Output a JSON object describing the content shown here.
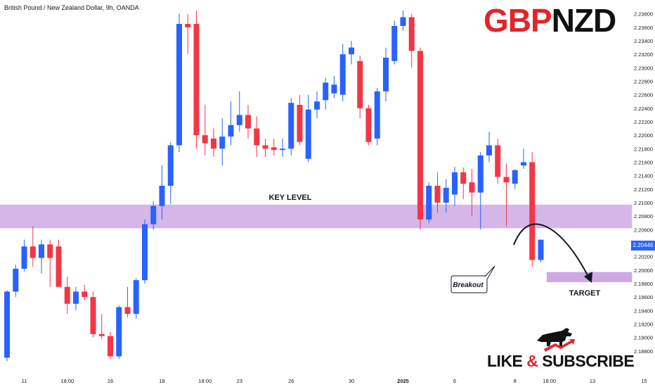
{
  "header": {
    "symbol_line": "British Pound / New Zealand Dollar, 9h, OANDA"
  },
  "logo": {
    "text_a": "GBP",
    "text_b": "NZD",
    "color_a": "#e0262a",
    "color_b": "#111111"
  },
  "cta": {
    "text_a": "LIKE ",
    "amp": "&",
    "text_b": " SUBSCRIBE"
  },
  "colors": {
    "bull": "#2962ff",
    "bear": "#f23645",
    "zone": "#c89ee0",
    "price_tag": "#2962ff"
  },
  "current_price": "2.20446",
  "chart_data": {
    "type": "candlestick",
    "title": "",
    "xlabel": "",
    "ylabel": "",
    "ylim": [
      2.1862,
      2.2388
    ],
    "y_ticks": [
      "2.23800",
      "2.23600",
      "2.23400",
      "2.23200",
      "2.23000",
      "2.22800",
      "2.22600",
      "2.22400",
      "2.22200",
      "2.22000",
      "2.21800",
      "2.21600",
      "2.21400",
      "2.21200",
      "2.21000",
      "2.20800",
      "2.20600",
      "2.20200",
      "2.20000",
      "2.19800",
      "2.19600",
      "2.19400",
      "2.19200",
      "2.19000",
      "2.18800"
    ],
    "x_ticks": [
      {
        "label": "11",
        "i": 2
      },
      {
        "label": "18:00",
        "i": 7
      },
      {
        "label": "16",
        "i": 12
      },
      {
        "label": "18",
        "i": 18
      },
      {
        "label": "18:00",
        "i": 23
      },
      {
        "label": "23",
        "i": 27
      },
      {
        "label": "26",
        "i": 33
      },
      {
        "label": "30",
        "i": 40
      },
      {
        "label": "2025",
        "i": 46
      },
      {
        "label": "6",
        "i": 52
      },
      {
        "label": "8",
        "i": 59
      },
      {
        "label": "18:00",
        "i": 63
      },
      {
        "label": "13",
        "i": 68
      },
      {
        "label": "15",
        "i": 74
      }
    ],
    "candles": [
      {
        "o": 2.187,
        "h": 2.197,
        "l": 2.1865,
        "c": 2.1968
      },
      {
        "o": 2.1968,
        "h": 2.2008,
        "l": 2.196,
        "c": 2.2002
      },
      {
        "o": 2.2002,
        "h": 2.2045,
        "l": 2.1998,
        "c": 2.2035
      },
      {
        "o": 2.2035,
        "h": 2.2065,
        "l": 2.2005,
        "c": 2.2018
      },
      {
        "o": 2.2018,
        "h": 2.2045,
        "l": 2.1995,
        "c": 2.2038
      },
      {
        "o": 2.2038,
        "h": 2.2045,
        "l": 2.1975,
        "c": 2.2018
      },
      {
        "o": 2.2035,
        "h": 2.2045,
        "l": 2.1978,
        "c": 2.1975
      },
      {
        "o": 2.1975,
        "h": 2.199,
        "l": 2.1935,
        "c": 2.195
      },
      {
        "o": 2.195,
        "h": 2.1975,
        "l": 2.194,
        "c": 2.1968
      },
      {
        "o": 2.1968,
        "h": 2.1978,
        "l": 2.1955,
        "c": 2.196
      },
      {
        "o": 2.196,
        "h": 2.1968,
        "l": 2.19,
        "c": 2.1905
      },
      {
        "o": 2.1905,
        "h": 2.1935,
        "l": 2.1898,
        "c": 2.1902
      },
      {
        "o": 2.1902,
        "h": 2.1908,
        "l": 2.1868,
        "c": 2.1872
      },
      {
        "o": 2.1872,
        "h": 2.1948,
        "l": 2.1868,
        "c": 2.1945
      },
      {
        "o": 2.1945,
        "h": 2.1975,
        "l": 2.193,
        "c": 2.1935
      },
      {
        "o": 2.1935,
        "h": 2.1988,
        "l": 2.1928,
        "c": 2.1985
      },
      {
        "o": 2.1985,
        "h": 2.2075,
        "l": 2.198,
        "c": 2.2068
      },
      {
        "o": 2.2068,
        "h": 2.2102,
        "l": 2.206,
        "c": 2.2095
      },
      {
        "o": 2.2095,
        "h": 2.2155,
        "l": 2.2075,
        "c": 2.2125
      },
      {
        "o": 2.2125,
        "h": 2.219,
        "l": 2.2098,
        "c": 2.2185
      },
      {
        "o": 2.2185,
        "h": 2.238,
        "l": 2.2175,
        "c": 2.2365
      },
      {
        "o": 2.2365,
        "h": 2.238,
        "l": 2.232,
        "c": 2.236
      },
      {
        "o": 2.2365,
        "h": 2.2385,
        "l": 2.218,
        "c": 2.22
      },
      {
        "o": 2.22,
        "h": 2.2245,
        "l": 2.217,
        "c": 2.2188
      },
      {
        "o": 2.2195,
        "h": 2.221,
        "l": 2.2168,
        "c": 2.218
      },
      {
        "o": 2.218,
        "h": 2.2225,
        "l": 2.2155,
        "c": 2.2198
      },
      {
        "o": 2.2198,
        "h": 2.225,
        "l": 2.2185,
        "c": 2.2215
      },
      {
        "o": 2.2215,
        "h": 2.2265,
        "l": 2.2205,
        "c": 2.223
      },
      {
        "o": 2.223,
        "h": 2.2245,
        "l": 2.2195,
        "c": 2.221
      },
      {
        "o": 2.221,
        "h": 2.2228,
        "l": 2.2168,
        "c": 2.2185
      },
      {
        "o": 2.2185,
        "h": 2.2195,
        "l": 2.2168,
        "c": 2.218
      },
      {
        "o": 2.2182,
        "h": 2.2195,
        "l": 2.217,
        "c": 2.2178
      },
      {
        "o": 2.2178,
        "h": 2.2195,
        "l": 2.2168,
        "c": 2.218
      },
      {
        "o": 2.218,
        "h": 2.2255,
        "l": 2.217,
        "c": 2.2248
      },
      {
        "o": 2.2245,
        "h": 2.226,
        "l": 2.2185,
        "c": 2.219
      },
      {
        "o": 2.2165,
        "h": 2.226,
        "l": 2.216,
        "c": 2.2238
      },
      {
        "o": 2.2238,
        "h": 2.2265,
        "l": 2.2225,
        "c": 2.225
      },
      {
        "o": 2.2252,
        "h": 2.2285,
        "l": 2.2238,
        "c": 2.2278
      },
      {
        "o": 2.2262,
        "h": 2.2288,
        "l": 2.2255,
        "c": 2.2275
      },
      {
        "o": 2.226,
        "h": 2.2335,
        "l": 2.225,
        "c": 2.232
      },
      {
        "o": 2.232,
        "h": 2.234,
        "l": 2.2305,
        "c": 2.233
      },
      {
        "o": 2.231,
        "h": 2.2318,
        "l": 2.2225,
        "c": 2.224
      },
      {
        "o": 2.224,
        "h": 2.2245,
        "l": 2.2185,
        "c": 2.219
      },
      {
        "o": 2.2195,
        "h": 2.227,
        "l": 2.2185,
        "c": 2.2265
      },
      {
        "o": 2.2265,
        "h": 2.233,
        "l": 2.225,
        "c": 2.2315
      },
      {
        "o": 2.231,
        "h": 2.237,
        "l": 2.2305,
        "c": 2.2362
      },
      {
        "o": 2.2362,
        "h": 2.2385,
        "l": 2.2355,
        "c": 2.2375
      },
      {
        "o": 2.2375,
        "h": 2.238,
        "l": 2.23,
        "c": 2.2325
      },
      {
        "o": 2.2325,
        "h": 2.233,
        "l": 2.206,
        "c": 2.2075
      },
      {
        "o": 2.2075,
        "h": 2.213,
        "l": 2.207,
        "c": 2.2125
      },
      {
        "o": 2.2125,
        "h": 2.2145,
        "l": 2.2085,
        "c": 2.21
      },
      {
        "o": 2.21,
        "h": 2.2135,
        "l": 2.2085,
        "c": 2.2122
      },
      {
        "o": 2.2112,
        "h": 2.2153,
        "l": 2.2095,
        "c": 2.2145
      },
      {
        "o": 2.2145,
        "h": 2.2152,
        "l": 2.2105,
        "c": 2.2128
      },
      {
        "o": 2.213,
        "h": 2.215,
        "l": 2.208,
        "c": 2.2115
      },
      {
        "o": 2.2115,
        "h": 2.2175,
        "l": 2.206,
        "c": 2.217
      },
      {
        "o": 2.217,
        "h": 2.2205,
        "l": 2.216,
        "c": 2.2185
      },
      {
        "o": 2.2185,
        "h": 2.2195,
        "l": 2.2128,
        "c": 2.2138
      },
      {
        "o": 2.2138,
        "h": 2.2158,
        "l": 2.2065,
        "c": 2.213
      },
      {
        "o": 2.2128,
        "h": 2.215,
        "l": 2.212,
        "c": 2.2148
      },
      {
        "o": 2.2155,
        "h": 2.218,
        "l": 2.215,
        "c": 2.216
      },
      {
        "o": 2.216,
        "h": 2.2175,
        "l": 2.2005,
        "c": 2.2015
      },
      {
        "o": 2.2015,
        "h": 2.2045,
        "l": 2.2012,
        "c": 2.2045
      }
    ],
    "zones": [
      {
        "label": "KEY LEVEL",
        "from_i": 0,
        "to_i": 72.6,
        "ymin": 2.2062,
        "ymax": 2.2097
      },
      {
        "label": "TARGET",
        "from_i": 63.5,
        "to_i": 72.6,
        "ymin": 2.1982,
        "ymax": 2.1997
      }
    ],
    "annotations": [
      "Breakout"
    ]
  }
}
